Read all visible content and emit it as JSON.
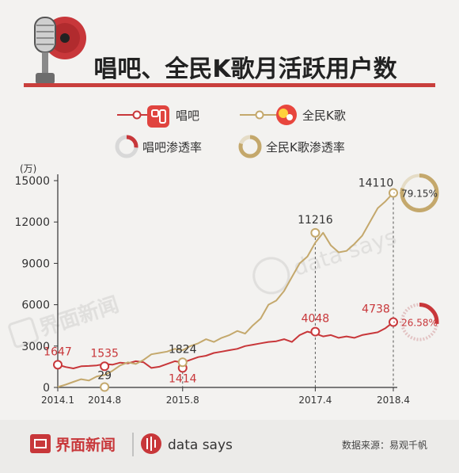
{
  "header": {
    "title": "唱吧、全民K歌月活跃用户数"
  },
  "legend": {
    "changba_label": "唱吧",
    "quanmin_label": "全民K歌",
    "changba_rate_label": "唱吧渗透率",
    "quanmin_rate_label": "全民K歌渗透率"
  },
  "footer": {
    "brand": "界面新闻",
    "datasays": "data says",
    "source": "数据来源：易观千帆"
  },
  "watermark": {
    "jiemian": "界面新闻",
    "datasays": "data says"
  },
  "colors": {
    "changba": "#c8373a",
    "quanmin": "#c4a86c",
    "title_bar": "#c93f3c",
    "text": "#333333"
  },
  "chart_data": {
    "type": "line",
    "ylabel": "(万)",
    "ylim": [
      0,
      15000
    ],
    "y_ticks": [
      0,
      3000,
      6000,
      9000,
      12000,
      15000
    ],
    "x_tick_labels": [
      "2014.1",
      "2014.8",
      "2015.8",
      "2017.4",
      "2018.4"
    ],
    "series": [
      {
        "name": "唱吧",
        "values": [
          1647,
          1480,
          1380,
          1535,
          1560,
          1600,
          1700,
          1650,
          1800,
          1750,
          1900,
          1824,
          1414,
          1500,
          1700,
          1900,
          1800,
          2000,
          2200,
          2300,
          2500,
          2600,
          2700,
          2800,
          3000,
          3100,
          3200,
          3300,
          3350,
          3500,
          3300,
          3800,
          4048,
          3900,
          3700,
          3800,
          3600,
          3700,
          3600,
          3800,
          3900,
          4000,
          4300,
          4738
        ],
        "labeled_points": [
          {
            "x": "2014.1",
            "value": "1647"
          },
          {
            "x": "2014.8",
            "value": "1535"
          },
          {
            "x": "2015.8",
            "value": "1414"
          },
          {
            "x": "2017.4",
            "value": "4048"
          },
          {
            "x": "2018.4",
            "value": "4738"
          }
        ],
        "penetration_rate": "26.58%"
      },
      {
        "name": "全民K歌",
        "values": [
          29,
          200,
          400,
          600,
          500,
          800,
          900,
          1200,
          1600,
          1824,
          1700,
          2000,
          2400,
          2500,
          2600,
          2800,
          2700,
          3000,
          3200,
          3500,
          3300,
          3600,
          3800,
          4100,
          3900,
          4500,
          5000,
          6000,
          6300,
          7000,
          8000,
          9000,
          9500,
          10500,
          11216,
          10300,
          9800,
          9900,
          10400,
          11000,
          12000,
          13000,
          13500,
          14110
        ],
        "labeled_points": [
          {
            "x": "2014.8",
            "value": "29"
          },
          {
            "x": "2015.8",
            "value": "1824"
          },
          {
            "x": "2017.4",
            "value": "11216"
          },
          {
            "x": "2018.4",
            "value": "14110"
          }
        ],
        "penetration_rate": "79.15%"
      }
    ]
  }
}
